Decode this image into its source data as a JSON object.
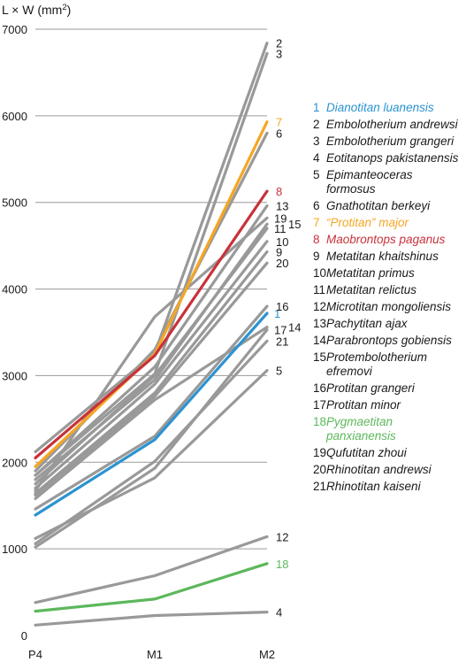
{
  "chart_data": {
    "type": "line",
    "ylabel": "L × W (mm",
    "ylabel_sup": "2",
    "ylabel_end": ")",
    "categories": [
      "P4",
      "M1",
      "M2"
    ],
    "ylim": [
      0,
      7000
    ],
    "yticks": [
      "0",
      "1000",
      "2000",
      "3000",
      "4000",
      "5000",
      "6000",
      "7000"
    ],
    "grid": "horizontal",
    "legend_position": "right",
    "series": [
      {
        "name": "Dianotitan luanensis",
        "label": "1",
        "values": [
          1390,
          2260,
          3720
        ],
        "color": "#2b93d1"
      },
      {
        "name": "Embolotherium andrewsi",
        "label": "2",
        "values": [
          2120,
          3260,
          6840
        ],
        "color": "#999999"
      },
      {
        "name": "Embolotherium grangeri",
        "label": "3",
        "values": [
          1850,
          3020,
          6720
        ],
        "color": "#999999"
      },
      {
        "name": "Eotitanops pakistanensis",
        "label": "4",
        "values": [
          120,
          230,
          270
        ],
        "color": "#999999"
      },
      {
        "name": "Epimanteoceras formosus",
        "label": "5",
        "values": [
          1120,
          1820,
          3060
        ],
        "color": "#999999"
      },
      {
        "name": "Gnathotitan berkeyi",
        "label": "6",
        "values": [
          1900,
          3300,
          5800
        ],
        "color": "#999999"
      },
      {
        "name": "“Protitan” major",
        "label": "7",
        "values": [
          1950,
          3250,
          5930
        ],
        "color": "#f5a623"
      },
      {
        "name": "Maobrontops paganus",
        "label": "8",
        "values": [
          2050,
          3230,
          5130
        ],
        "color": "#c8323a"
      },
      {
        "name": "Metatitan khaitshinus",
        "label": "9",
        "values": [
          1640,
          2800,
          4430
        ],
        "color": "#999999"
      },
      {
        "name": "Metatitan primus",
        "label": "10",
        "values": [
          1700,
          2900,
          4550
        ],
        "color": "#999999"
      },
      {
        "name": "Metatitan relictus",
        "label": "11",
        "values": [
          1750,
          3000,
          4700
        ],
        "color": "#999999"
      },
      {
        "name": "Microtitan mongoliensis",
        "label": "12",
        "values": [
          380,
          690,
          1140
        ],
        "color": "#999999"
      },
      {
        "name": "Pachytitan ajax",
        "label": "13",
        "values": [
          1850,
          3100,
          4960
        ],
        "color": "#999999"
      },
      {
        "name": "Parabrontops gobiensis",
        "label": "14",
        "values": [
          1580,
          2720,
          3560
        ],
        "color": "#999999"
      },
      {
        "name": "Protembolotherium efremovi",
        "label": "15",
        "values": [
          1800,
          2950,
          4750
        ],
        "color": "#999999"
      },
      {
        "name": "Protitan grangeri",
        "label": "16",
        "values": [
          1460,
          2300,
          3800
        ],
        "color": "#999999"
      },
      {
        "name": "Protitan minor",
        "label": "17",
        "values": [
          1020,
          1930,
          3530
        ],
        "color": "#999999"
      },
      {
        "name": "Pygmaetitan panxianensis",
        "label": "18",
        "values": [
          280,
          420,
          830
        ],
        "color": "#5cb85c"
      },
      {
        "name": "Qufutitan zhoui",
        "label": "19",
        "values": [
          1670,
          3680,
          4820
        ],
        "color": "#999999"
      },
      {
        "name": "Rhinotitan andrewsi",
        "label": "20",
        "values": [
          1620,
          2760,
          4300
        ],
        "color": "#999999"
      },
      {
        "name": "Rhinotitan kaiseni",
        "label": "21",
        "values": [
          1060,
          2010,
          3400
        ],
        "color": "#999999"
      }
    ]
  }
}
